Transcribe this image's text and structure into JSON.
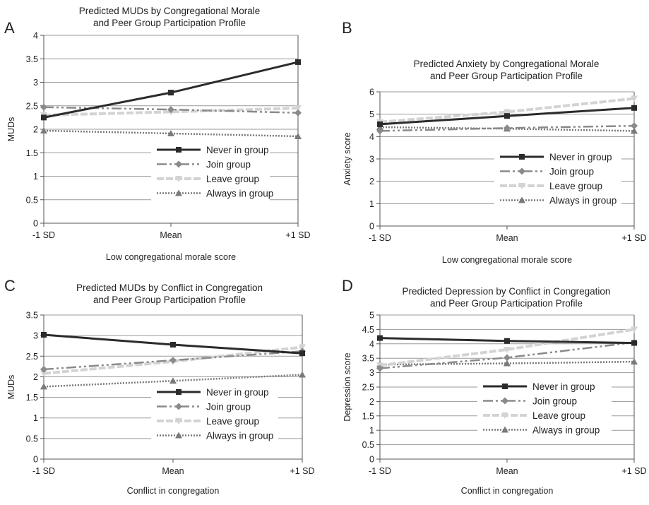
{
  "styles": {
    "never": {
      "color": "#2b2b2b",
      "width": 3.0,
      "dash": "",
      "marker": "square"
    },
    "join": {
      "color": "#8a8a8a",
      "width": 2.5,
      "dash": "14 4 3 4 3 4",
      "marker": "diamond"
    },
    "leave": {
      "color": "#d3d3d3",
      "width": 4.0,
      "dash": "10 3",
      "marker": "triangle-down"
    },
    "always": {
      "color": "#7a7a7a",
      "width": 2.5,
      "dash": "2 2",
      "marker": "triangle"
    }
  },
  "chart_data": [
    {
      "type": "line",
      "panel": "A",
      "title": [
        "Predicted MUDs by Congregational Morale",
        "and Peer Group Participation Profile"
      ],
      "xlabel": "Low congregational morale score",
      "ylabel": "MUDs",
      "categories": [
        "-1 SD",
        "Mean",
        "+1 SD"
      ],
      "ylim": [
        0,
        4
      ],
      "yticks": [
        "0",
        "0.5",
        "1",
        "1.5",
        "2",
        "2.5",
        "3",
        "3.5",
        "4"
      ],
      "grid": true,
      "legend": "bottom-right",
      "series": [
        {
          "name": "Never in group",
          "style": "never",
          "values": [
            2.25,
            2.78,
            3.43
          ]
        },
        {
          "name": "Join group",
          "style": "join",
          "values": [
            2.47,
            2.42,
            2.35
          ]
        },
        {
          "name": "Leave group",
          "style": "leave",
          "values": [
            2.3,
            2.37,
            2.45
          ]
        },
        {
          "name": "Always in group",
          "style": "always",
          "values": [
            1.97,
            1.91,
            1.85
          ]
        }
      ]
    },
    {
      "type": "line",
      "panel": "B",
      "title": [
        "Predicted Anxiety by Congregational Morale",
        "and Peer Group Participation Profile"
      ],
      "xlabel": "Low congregational morale score",
      "ylabel": "Anxiety score",
      "categories": [
        "-1 SD",
        "Mean",
        "+1 SD"
      ],
      "ylim": [
        0,
        6
      ],
      "yticks": [
        "0",
        "1",
        "2",
        "3",
        "4",
        "5",
        "6"
      ],
      "grid": true,
      "legend": "bottom-right",
      "series": [
        {
          "name": "Never in group",
          "style": "never",
          "values": [
            4.55,
            4.92,
            5.28
          ]
        },
        {
          "name": "Join group",
          "style": "join",
          "values": [
            4.25,
            4.38,
            4.48
          ]
        },
        {
          "name": "Leave group",
          "style": "leave",
          "values": [
            4.65,
            5.1,
            5.7
          ]
        },
        {
          "name": "Always in group",
          "style": "always",
          "values": [
            4.42,
            4.35,
            4.25
          ]
        }
      ]
    },
    {
      "type": "line",
      "panel": "C",
      "title": [
        "Predicted MUDs by Conflict in Congregation",
        "and Peer Group Participation Profile"
      ],
      "xlabel": "Conflict in congregation",
      "ylabel": "MUDs",
      "categories": [
        "-1 SD",
        "Mean",
        "+1 SD"
      ],
      "ylim": [
        0,
        3.5
      ],
      "yticks": [
        "0",
        "0.5",
        "1",
        "1.5",
        "2",
        "2.5",
        "3",
        "3.5"
      ],
      "grid": true,
      "legend": "bottom-right",
      "series": [
        {
          "name": "Never in group",
          "style": "never",
          "values": [
            3.02,
            2.78,
            2.57
          ]
        },
        {
          "name": "Join group",
          "style": "join",
          "values": [
            2.18,
            2.4,
            2.62
          ]
        },
        {
          "name": "Leave group",
          "style": "leave",
          "values": [
            2.08,
            2.37,
            2.72
          ]
        },
        {
          "name": "Always in group",
          "style": "always",
          "values": [
            1.76,
            1.9,
            2.05
          ]
        }
      ]
    },
    {
      "type": "line",
      "panel": "D",
      "title": [
        "Predicted Depression by Conflict in Congregation",
        "and Peer Group Participation Profile"
      ],
      "xlabel": "Conflict in congregation",
      "ylabel": "Depression score",
      "categories": [
        "-1 SD",
        "Mean",
        "+1 SD"
      ],
      "ylim": [
        0,
        5
      ],
      "yticks": [
        "0",
        "0.5",
        "1",
        "1.5",
        "2",
        "2.5",
        "3",
        "3.5",
        "4",
        "4.5",
        "5"
      ],
      "grid": true,
      "legend": "bottom-right",
      "series": [
        {
          "name": "Never in group",
          "style": "never",
          "values": [
            4.2,
            4.1,
            4.03
          ]
        },
        {
          "name": "Join group",
          "style": "join",
          "values": [
            3.15,
            3.52,
            4.05
          ]
        },
        {
          "name": "Leave group",
          "style": "leave",
          "values": [
            3.25,
            3.8,
            4.5
          ]
        },
        {
          "name": "Always in group",
          "style": "always",
          "values": [
            3.28,
            3.32,
            3.38
          ]
        }
      ]
    }
  ]
}
